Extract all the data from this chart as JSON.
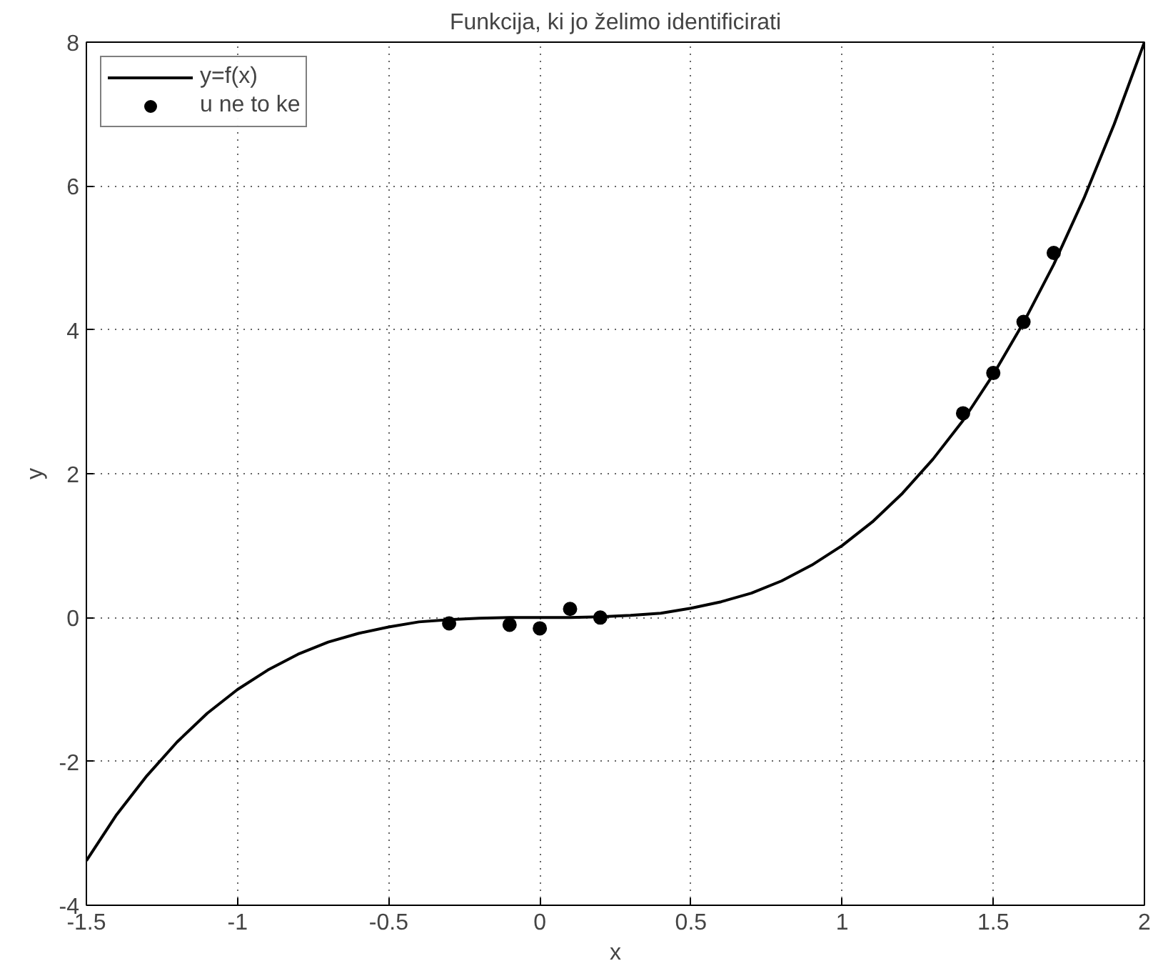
{
  "chart_data": {
    "type": "line",
    "title": "Funkcija, ki jo želimo identificirati",
    "xlabel": "x",
    "ylabel": "y",
    "xlim": [
      -1.5,
      2
    ],
    "ylim": [
      -4,
      8
    ],
    "xticks": [
      -1.5,
      -1,
      -0.5,
      0,
      0.5,
      1,
      1.5,
      2
    ],
    "yticks": [
      -4,
      -2,
      0,
      2,
      4,
      6,
      8
    ],
    "grid": true,
    "legend": "top left",
    "series": [
      {
        "name": "y=f(x)",
        "color": "#000000",
        "line_style": "solid",
        "marker": "none",
        "x": [
          -1.5,
          -1.4,
          -1.3,
          -1.2,
          -1.1,
          -1,
          -0.9,
          -0.8,
          -0.7,
          -0.6,
          -0.5,
          -0.4,
          -0.3,
          -0.2,
          -0.1,
          0,
          0.1,
          0.2,
          0.3,
          0.4,
          0.5,
          0.6,
          0.7,
          0.8,
          0.9,
          1,
          1.1,
          1.2,
          1.3,
          1.4,
          1.5,
          1.6,
          1.7,
          1.8,
          1.9,
          2
        ],
        "values": [
          -3.38,
          -2.74,
          -2.2,
          -1.73,
          -1.33,
          -1,
          -0.73,
          -0.51,
          -0.34,
          -0.22,
          -0.13,
          -0.06,
          -0.03,
          -0.01,
          0,
          0,
          0,
          0.01,
          0.03,
          0.06,
          0.13,
          0.22,
          0.34,
          0.51,
          0.73,
          1,
          1.33,
          1.73,
          2.2,
          2.74,
          3.38,
          4.1,
          4.91,
          5.83,
          6.86,
          8
        ]
      },
      {
        "name": "u ne to ke",
        "type": "scatter",
        "color": "#000000",
        "marker": "circle",
        "x": [
          -0.3,
          -0.1,
          0,
          0.1,
          0.2,
          1.4,
          1.5,
          1.6,
          1.7
        ],
        "values": [
          -0.08,
          -0.1,
          -0.15,
          0.12,
          0.0,
          2.84,
          3.4,
          4.11,
          5.07
        ]
      }
    ]
  }
}
